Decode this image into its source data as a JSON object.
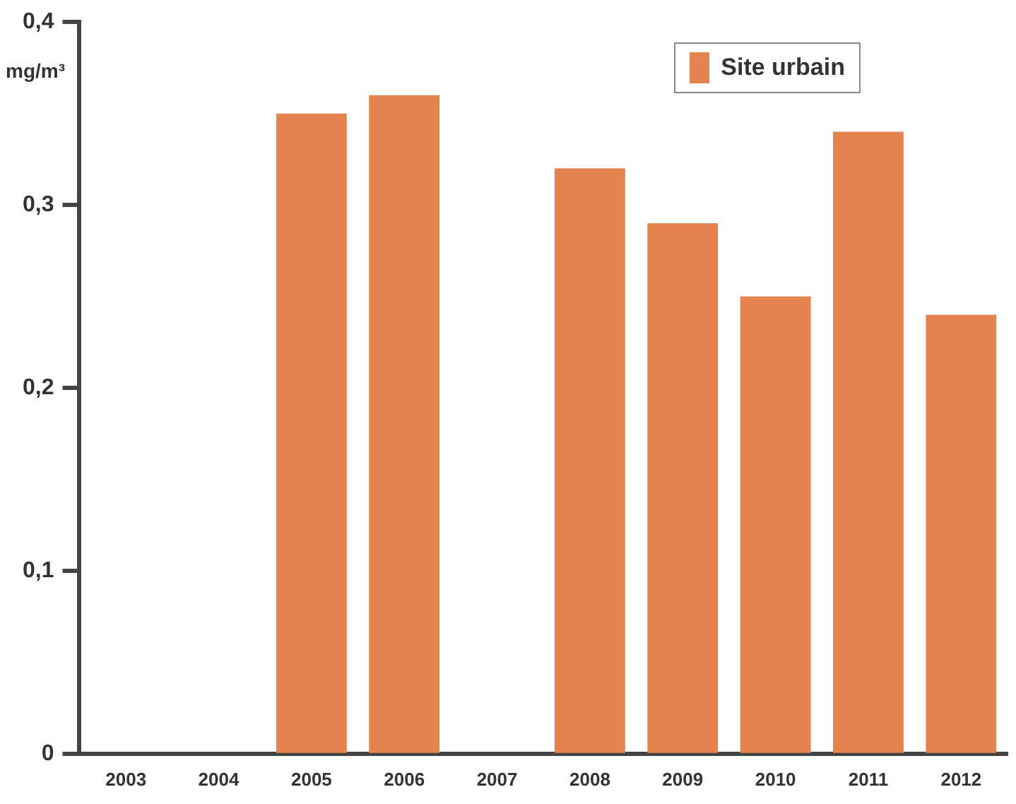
{
  "chart_data": {
    "type": "bar",
    "ylabel": "mg/m³",
    "categories": [
      "2003",
      "2004",
      "2005",
      "2006",
      "2007",
      "2008",
      "2009",
      "2010",
      "2011",
      "2012"
    ],
    "series": [
      {
        "name": "Site urbain",
        "color": "#e5834f",
        "values": [
          null,
          null,
          0.35,
          0.36,
          null,
          0.32,
          0.29,
          0.25,
          0.34,
          0.24
        ]
      }
    ],
    "ylim": [
      0,
      0.4
    ],
    "yticks": [
      {
        "value": 0,
        "label": "0"
      },
      {
        "value": 0.1,
        "label": "0,1"
      },
      {
        "value": 0.2,
        "label": "0,2"
      },
      {
        "value": 0.3,
        "label": "0,3"
      },
      {
        "value": 0.4,
        "label": "0,4"
      }
    ],
    "grid": false,
    "legend": "top right"
  }
}
